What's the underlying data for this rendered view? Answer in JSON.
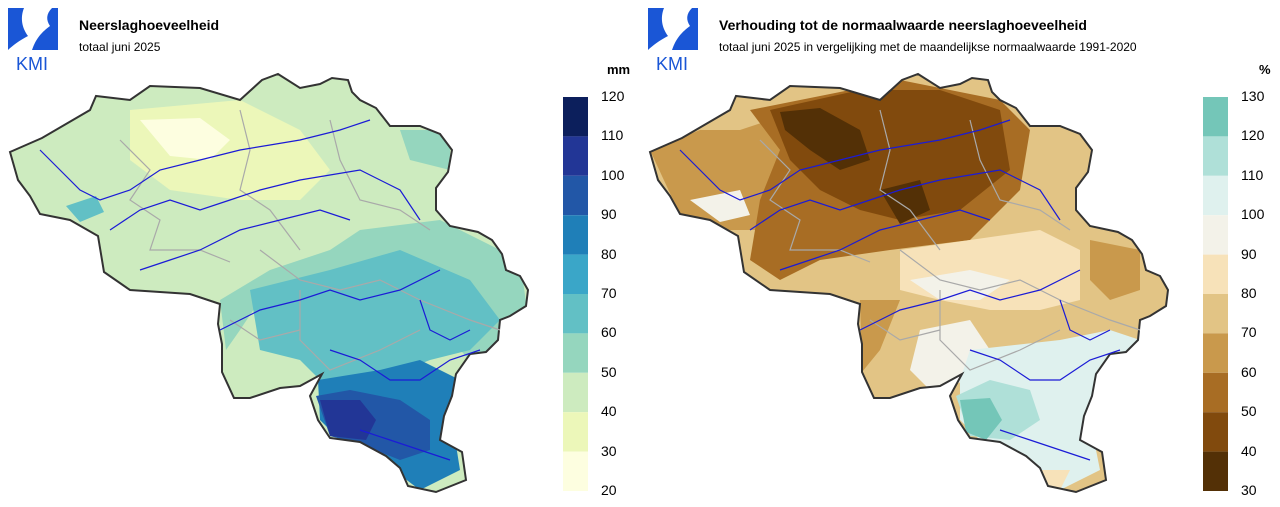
{
  "left": {
    "logo_text": "KMI",
    "title": "Neerslaghoeveelheid",
    "subtitle": "totaal juni 2025",
    "unit": "mm",
    "ticks": [
      "120",
      "110",
      "100",
      "90",
      "80",
      "70",
      "60",
      "50",
      "40",
      "30",
      "20"
    ],
    "colors": [
      "#0c1f5c",
      "#223696",
      "#2257a7",
      "#1f7fb8",
      "#3aa6c8",
      "#62c0c5",
      "#95d6be",
      "#cdebbf",
      "#ecf7b9",
      "#fdfee0"
    ],
    "fills": {
      "base": "#cdebbf",
      "light": "#fdfee0",
      "pale": "#ecf7b9",
      "mid": "#62c0c5",
      "teal": "#3aa6c8",
      "blue": "#1f7fb8",
      "deep": "#223696",
      "mint": "#95d6be"
    }
  },
  "right": {
    "logo_text": "KMI",
    "title": "Verhouding tot de normaalwaarde neerslaghoeveelheid",
    "subtitle": "totaal juni 2025 in vergelijking met de maandelijkse normaalwaarde 1991-2020",
    "unit": "%",
    "ticks": [
      "130",
      "120",
      "110",
      "100",
      "90",
      "80",
      "70",
      "60",
      "50",
      "40",
      "30"
    ],
    "colors": [
      "#74c6b8",
      "#afe0d8",
      "#dff1ee",
      "#f3f2e9",
      "#f7e2b9",
      "#e2c485",
      "#c9994c",
      "#a86d24",
      "#814a0d",
      "#533006"
    ],
    "fills": {
      "base": "#e2c485",
      "dark": "#814a0d",
      "darkest": "#533006",
      "brown": "#a86d24",
      "tan": "#c9994c",
      "cream": "#f7e2b9",
      "white": "#f3f2e9",
      "aqua": "#dff1ee",
      "teal": "#74c6b8"
    }
  }
}
